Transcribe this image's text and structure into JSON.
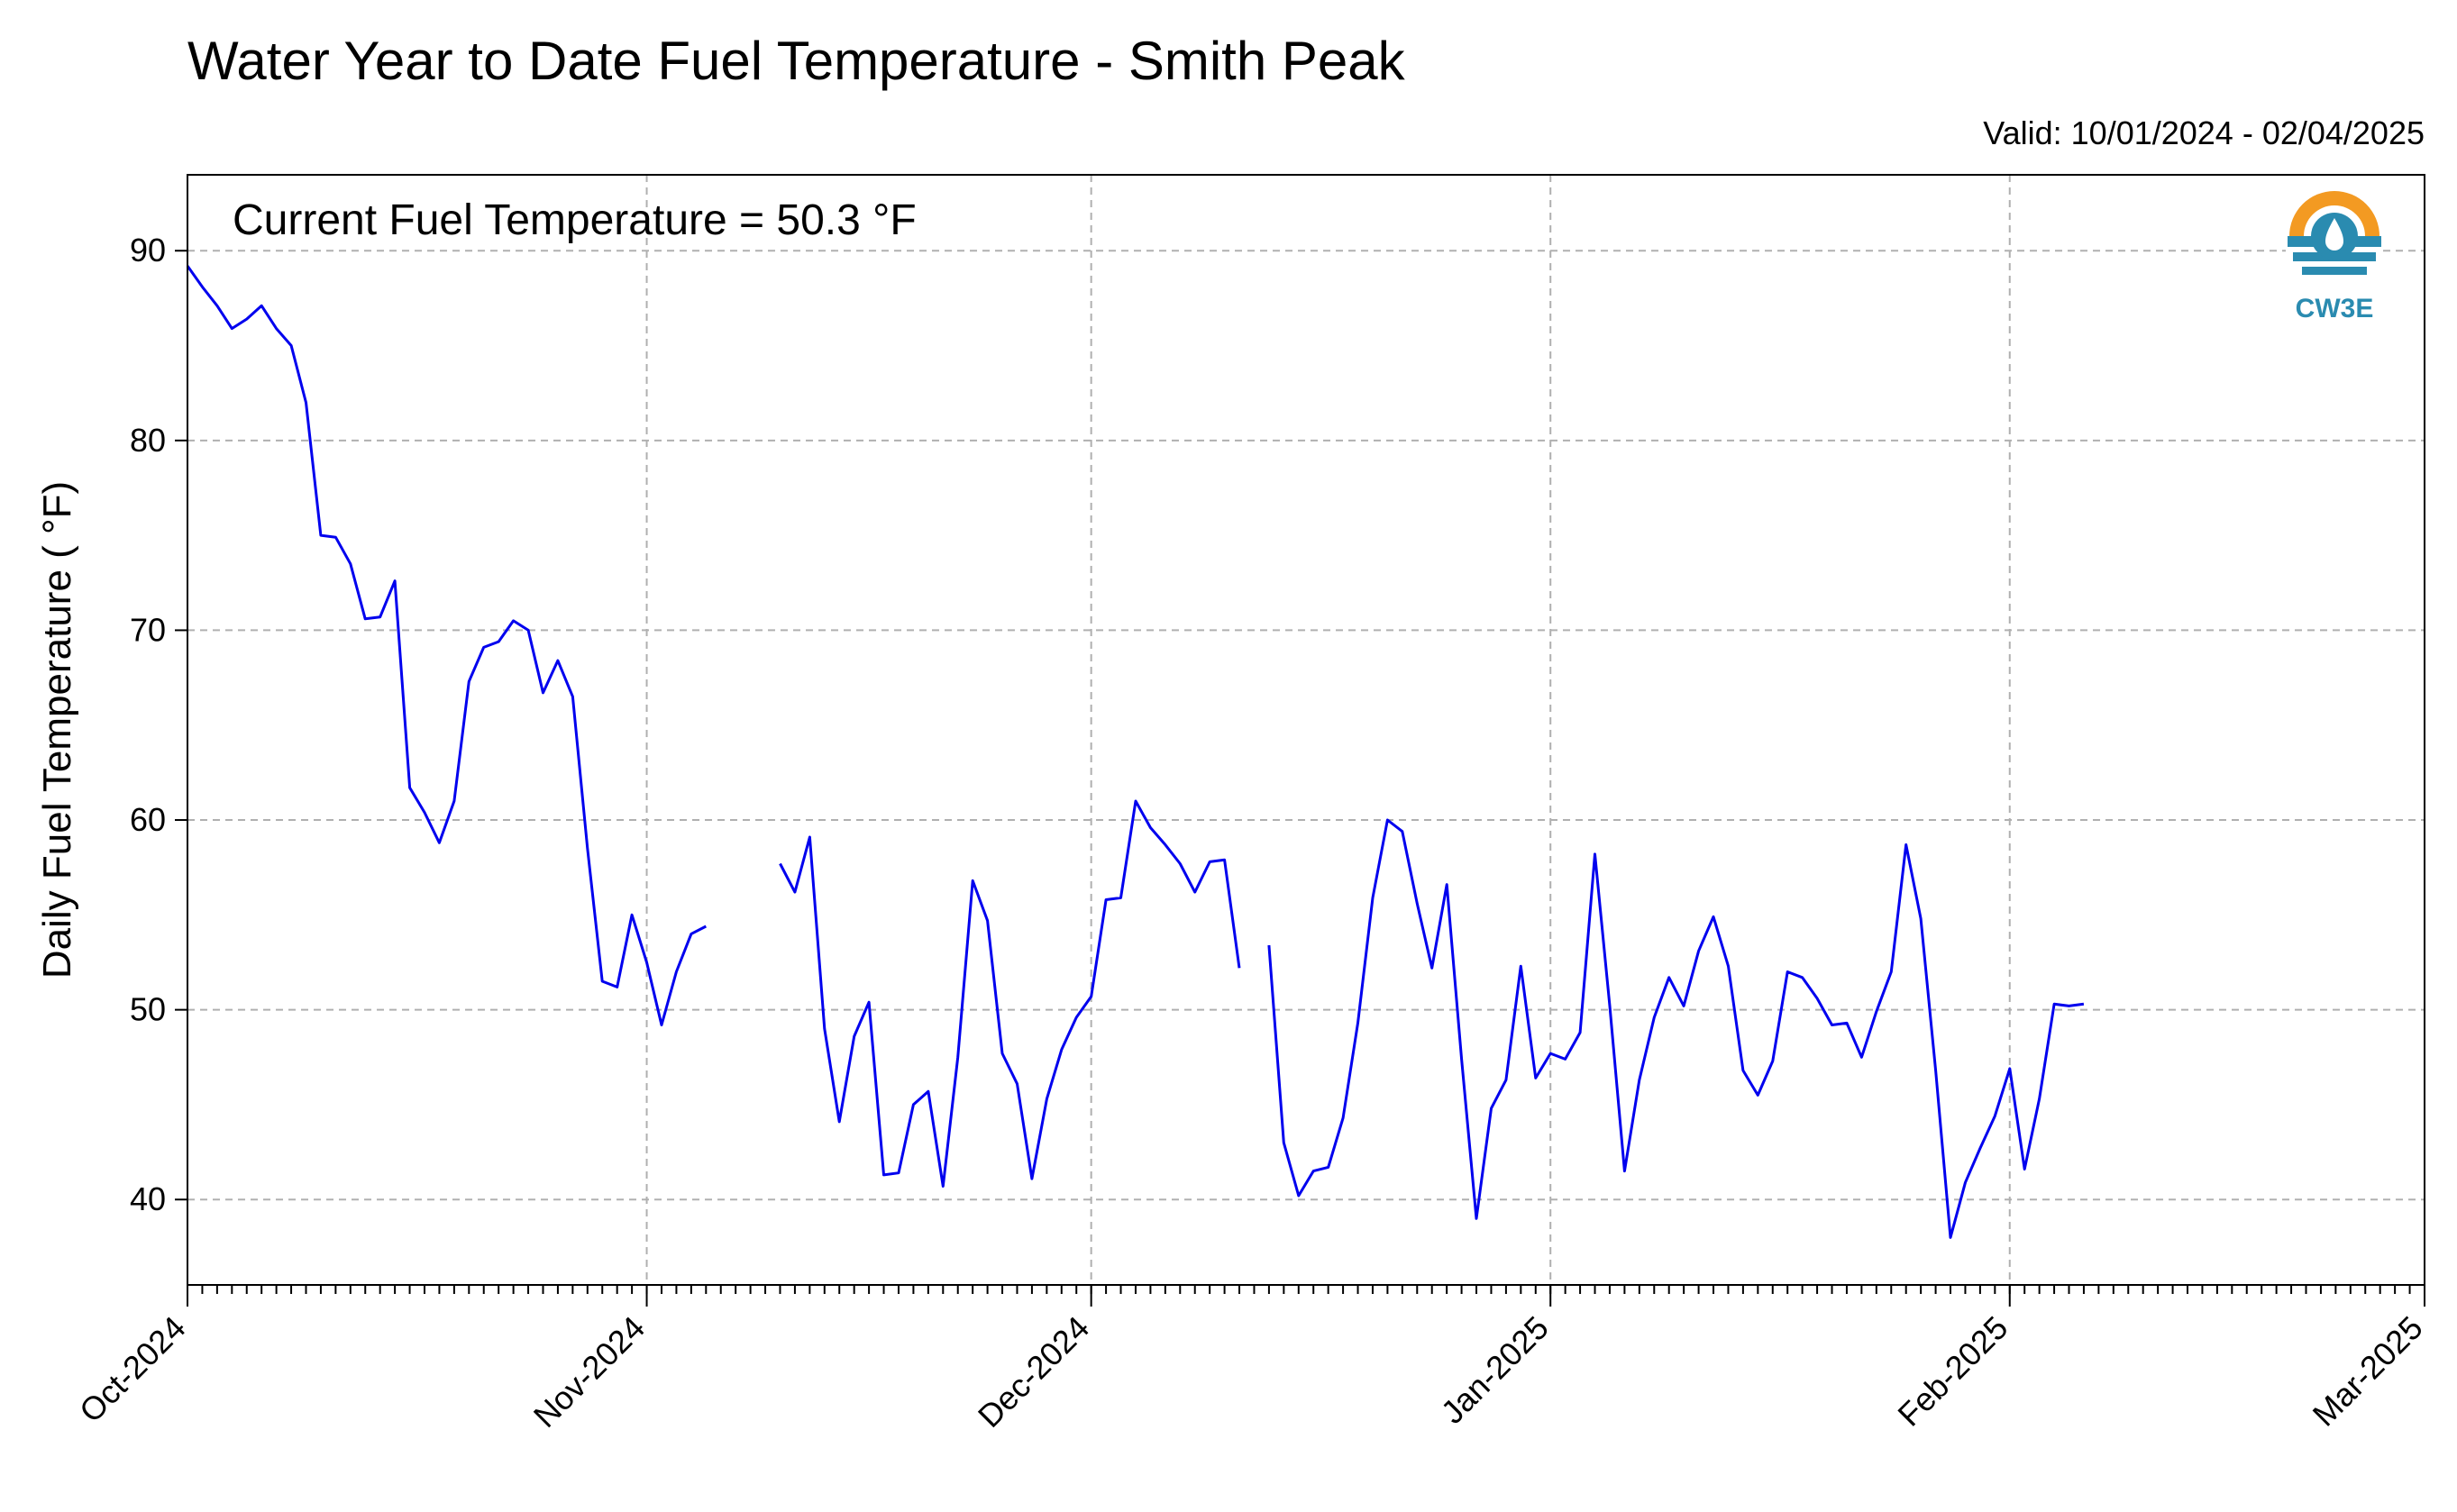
{
  "chart_data": {
    "type": "line",
    "title": "Water Year to Date Fuel Temperature - Smith Peak",
    "subtitle": "Valid: 10/01/2024 - 02/04/2025",
    "ylabel": "Daily Fuel Temperature ( °F)",
    "xlabel": "",
    "annotation": "Current Fuel Temperature = 50.3 °F",
    "logo_text": "CW3E",
    "x_start": "2024-10-01",
    "xlim": [
      "2024-10-01",
      "2025-03-01"
    ],
    "ylim": [
      35.5,
      94
    ],
    "x_ticks": [
      {
        "date": "2024-10-01",
        "label": "Oct-2024"
      },
      {
        "date": "2024-11-01",
        "label": "Nov-2024"
      },
      {
        "date": "2024-12-01",
        "label": "Dec-2024"
      },
      {
        "date": "2025-01-01",
        "label": "Jan-2025"
      },
      {
        "date": "2025-02-01",
        "label": "Feb-2025"
      },
      {
        "date": "2025-03-01",
        "label": "Mar-2025"
      }
    ],
    "y_ticks": [
      40,
      50,
      60,
      70,
      80,
      90
    ],
    "grid": true,
    "line_color": "#0000ee",
    "series": [
      {
        "values": [
          89.2,
          88.1,
          87.1,
          85.9,
          86.4,
          87.1,
          85.9,
          85.0,
          82.0,
          75.0,
          74.9,
          73.5,
          70.6,
          70.7,
          72.6,
          61.7,
          60.4,
          58.8,
          61.0,
          67.3,
          69.1,
          69.4,
          70.5,
          70.0,
          66.7,
          68.4,
          66.5,
          58.5,
          51.5,
          51.2,
          55.0,
          52.5,
          49.2,
          52.0,
          54.0,
          54.4,
          null,
          null,
          null,
          null,
          57.7,
          56.2,
          59.1,
          49.0,
          44.1,
          48.6,
          50.4,
          41.3,
          41.4,
          45.0,
          45.7,
          40.7,
          47.5,
          56.8,
          54.7,
          47.7,
          46.1,
          41.1,
          45.3,
          47.9,
          49.6,
          50.7,
          55.8,
          55.9,
          61.0,
          59.6,
          58.7,
          57.7,
          56.2,
          57.8,
          57.9,
          52.2,
          null,
          53.4,
          43.0,
          40.2,
          41.5,
          41.7,
          44.3,
          49.3,
          55.9,
          60.0,
          59.4,
          55.6,
          52.2,
          56.6,
          47.4,
          39.0,
          44.8,
          46.3,
          52.3,
          46.4,
          47.7,
          47.4,
          48.8,
          58.2,
          50.2,
          41.5,
          46.3,
          49.6,
          51.7,
          50.2,
          53.1,
          54.9,
          52.3,
          46.8,
          45.5,
          47.3,
          52.0,
          51.7,
          50.6,
          49.2,
          49.3,
          47.5,
          49.9,
          52.0,
          58.7,
          54.8,
          46.8,
          38.0,
          40.9,
          42.7,
          44.4,
          46.9,
          41.6,
          45.3,
          50.3,
          50.2,
          50.3
        ]
      }
    ]
  }
}
